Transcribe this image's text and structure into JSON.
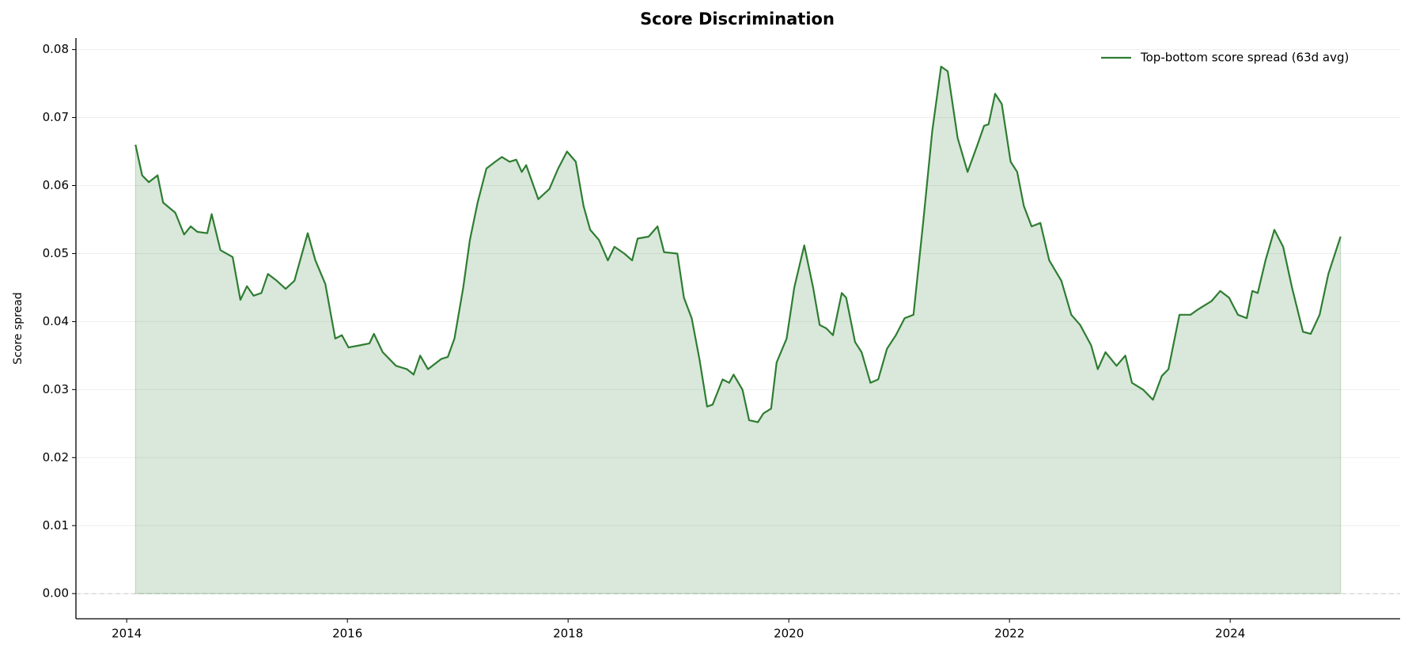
{
  "chart_data": {
    "type": "area",
    "title": "Score Discrimination",
    "y_label": "Score spread",
    "series": [
      {
        "name": "Top-bottom score spread (63d avg)",
        "color": "#2e7d32",
        "x": [
          2014.08,
          2014.14,
          2014.2,
          2014.28,
          2014.33,
          2014.44,
          2014.52,
          2014.58,
          2014.64,
          2014.73,
          2014.77,
          2014.85,
          2014.96,
          2015.03,
          2015.09,
          2015.15,
          2015.22,
          2015.28,
          2015.36,
          2015.44,
          2015.52,
          2015.64,
          2015.71,
          2015.8,
          2015.89,
          2015.95,
          2016.01,
          2016.11,
          2016.2,
          2016.24,
          2016.32,
          2016.44,
          2016.54,
          2016.6,
          2016.66,
          2016.73,
          2016.85,
          2016.91,
          2016.97,
          2017.05,
          2017.11,
          2017.18,
          2017.26,
          2017.34,
          2017.4,
          2017.47,
          2017.53,
          2017.58,
          2017.62,
          2017.73,
          2017.83,
          2017.91,
          2017.99,
          2018.07,
          2018.14,
          2018.2,
          2018.28,
          2018.36,
          2018.42,
          2018.51,
          2018.58,
          2018.63,
          2018.73,
          2018.81,
          2018.87,
          2018.99,
          2019.05,
          2019.12,
          2019.19,
          2019.26,
          2019.31,
          2019.4,
          2019.46,
          2019.5,
          2019.58,
          2019.64,
          2019.72,
          2019.77,
          2019.84,
          2019.89,
          2019.98,
          2020.05,
          2020.14,
          2020.22,
          2020.28,
          2020.34,
          2020.4,
          2020.48,
          2020.52,
          2020.6,
          2020.66,
          2020.74,
          2020.81,
          2020.89,
          2020.97,
          2021.05,
          2021.13,
          2021.22,
          2021.3,
          2021.38,
          2021.44,
          2021.53,
          2021.62,
          2021.71,
          2021.77,
          2021.81,
          2021.87,
          2021.93,
          2022.01,
          2022.07,
          2022.13,
          2022.2,
          2022.28,
          2022.36,
          2022.47,
          2022.56,
          2022.64,
          2022.74,
          2022.8,
          2022.87,
          2022.97,
          2023.05,
          2023.11,
          2023.21,
          2023.3,
          2023.38,
          2023.44,
          2023.54,
          2023.64,
          2023.71,
          2023.83,
          2023.91,
          2023.99,
          2024.07,
          2024.15,
          2024.2,
          2024.25,
          2024.32,
          2024.4,
          2024.48,
          2024.56,
          2024.66,
          2024.73,
          2024.81,
          2024.89,
          2025.0
        ],
        "values": [
          0.066,
          0.0615,
          0.0605,
          0.0615,
          0.0575,
          0.056,
          0.0528,
          0.054,
          0.0532,
          0.053,
          0.0558,
          0.0505,
          0.0495,
          0.0432,
          0.0452,
          0.0438,
          0.0442,
          0.047,
          0.046,
          0.0448,
          0.046,
          0.053,
          0.049,
          0.0455,
          0.0375,
          0.038,
          0.0362,
          0.0365,
          0.0368,
          0.0382,
          0.0355,
          0.0335,
          0.033,
          0.0322,
          0.035,
          0.033,
          0.0345,
          0.0348,
          0.0375,
          0.045,
          0.052,
          0.0575,
          0.0625,
          0.0635,
          0.0642,
          0.0635,
          0.0638,
          0.062,
          0.063,
          0.058,
          0.0595,
          0.0625,
          0.065,
          0.0635,
          0.057,
          0.0535,
          0.052,
          0.049,
          0.051,
          0.05,
          0.049,
          0.0522,
          0.0525,
          0.054,
          0.0502,
          0.05,
          0.0435,
          0.0405,
          0.0345,
          0.0275,
          0.0278,
          0.0315,
          0.031,
          0.0322,
          0.03,
          0.0255,
          0.0252,
          0.0265,
          0.0272,
          0.034,
          0.0375,
          0.045,
          0.0512,
          0.045,
          0.0395,
          0.039,
          0.038,
          0.0442,
          0.0435,
          0.037,
          0.0355,
          0.031,
          0.0315,
          0.036,
          0.038,
          0.0405,
          0.041,
          0.055,
          0.068,
          0.0775,
          0.0768,
          0.067,
          0.062,
          0.066,
          0.0688,
          0.069,
          0.0735,
          0.072,
          0.0635,
          0.062,
          0.057,
          0.054,
          0.0545,
          0.049,
          0.046,
          0.041,
          0.0395,
          0.0365,
          0.033,
          0.0355,
          0.0335,
          0.035,
          0.031,
          0.03,
          0.0285,
          0.032,
          0.033,
          0.041,
          0.041,
          0.0418,
          0.043,
          0.0445,
          0.0435,
          0.041,
          0.0405,
          0.0445,
          0.0442,
          0.049,
          0.0535,
          0.051,
          0.045,
          0.0385,
          0.0382,
          0.041,
          0.047,
          0.0525
        ]
      }
    ],
    "xlim": [
      2013.54,
      2025.54
    ],
    "xticks": [
      2014,
      2016,
      2018,
      2020,
      2022,
      2024
    ],
    "ylim": [
      -0.0037,
      0.0817
    ],
    "yticks": [
      {
        "value": 0,
        "label": "0.00"
      },
      {
        "value": 0.01,
        "label": "0.01"
      },
      {
        "value": 0.02,
        "label": "0.02"
      },
      {
        "value": 0.03,
        "label": "0.03"
      },
      {
        "value": 0.04,
        "label": "0.04"
      },
      {
        "value": 0.05,
        "label": "0.05"
      },
      {
        "value": 0.06,
        "label": "0.06"
      },
      {
        "value": 0.07,
        "label": "0.07"
      },
      {
        "value": 0.08,
        "label": "0.08"
      }
    ],
    "grid": true,
    "hline": 0,
    "legend": "upper right"
  }
}
